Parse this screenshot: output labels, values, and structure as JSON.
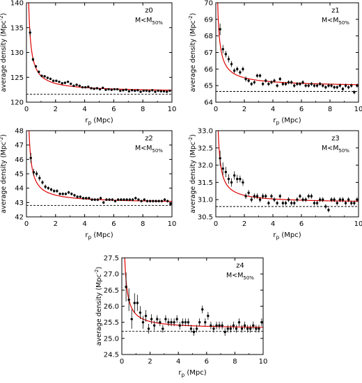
{
  "figure": {
    "xlabel_main": "r",
    "xlabel_sub": "p",
    "xlabel_unit": " (Mpc)",
    "ylabel_main": "average density (Mpc",
    "ylabel_sup": "-2",
    "ylabel_close": ")"
  },
  "colors": {
    "model": "#e00000",
    "points": "#000000",
    "baseline": "#000000",
    "frame": "#000000"
  },
  "chart_data": [
    {
      "type": "scatter",
      "panel": "z0",
      "tag": "z0",
      "mass_main": "M<M",
      "mass_sub": "50%",
      "xlim": [
        0,
        10
      ],
      "ylim": [
        120,
        140
      ],
      "xticks": [
        "0",
        "2",
        "4",
        "6",
        "8",
        "10"
      ],
      "yticks": [
        "120",
        "125",
        "130",
        "135",
        "140"
      ],
      "x": [
        0.25,
        0.45,
        0.65,
        0.85,
        1.05,
        1.25,
        1.45,
        1.65,
        1.85,
        2.05,
        2.25,
        2.45,
        2.65,
        2.85,
        3.05,
        3.25,
        3.45,
        3.65,
        3.85,
        4.05,
        4.25,
        4.45,
        4.65,
        4.85,
        5.05,
        5.25,
        5.45,
        5.65,
        5.85,
        6.05,
        6.25,
        6.45,
        6.65,
        6.85,
        7.05,
        7.25,
        7.45,
        7.65,
        7.85,
        8.05,
        8.25,
        8.45,
        8.65,
        8.85,
        9.05,
        9.25,
        9.45,
        9.65,
        9.85
      ],
      "y": [
        134.0,
        128.6,
        127.2,
        126.1,
        125.3,
        125.2,
        124.9,
        124.7,
        124.3,
        124.3,
        124.1,
        123.8,
        123.9,
        124.1,
        123.7,
        123.3,
        123.5,
        123.3,
        123.0,
        123.0,
        123.1,
        122.8,
        122.7,
        122.8,
        122.6,
        122.9,
        122.5,
        122.6,
        122.5,
        122.6,
        122.6,
        122.3,
        122.4,
        122.5,
        122.2,
        122.4,
        122.3,
        122.4,
        122.1,
        122.3,
        122.3,
        122.2,
        122.4,
        122.1,
        122.3,
        122.2,
        122.2,
        122.1,
        122.3
      ],
      "err": [
        0.7,
        0.4,
        0.3,
        0.3,
        0.25,
        0.25,
        0.25,
        0.25,
        0.2,
        0.2,
        0.2,
        0.2,
        0.2,
        0.2,
        0.2,
        0.2,
        0.2,
        0.2,
        0.2,
        0.2,
        0.2,
        0.2,
        0.2,
        0.2,
        0.2,
        0.2,
        0.2,
        0.2,
        0.2,
        0.2,
        0.2,
        0.2,
        0.2,
        0.2,
        0.2,
        0.2,
        0.2,
        0.2,
        0.2,
        0.2,
        0.2,
        0.2,
        0.2,
        0.2,
        0.2,
        0.2,
        0.2,
        0.2,
        0.2
      ],
      "model": {
        "floor": 122.0,
        "amp": 3.3,
        "power": 0.9
      },
      "baseline": 121.6
    },
    {
      "type": "scatter",
      "panel": "z1",
      "tag": "z1",
      "mass_main": "M<M",
      "mass_sub": "50%",
      "xlim": [
        0,
        10
      ],
      "ylim": [
        64,
        70
      ],
      "xticks": [
        "0",
        "2",
        "4",
        "6",
        "8",
        "10"
      ],
      "yticks": [
        "64",
        "65",
        "66",
        "67",
        "68",
        "69",
        "70"
      ],
      "x": [
        0.3,
        0.5,
        0.7,
        0.9,
        1.1,
        1.3,
        1.5,
        1.7,
        1.9,
        2.1,
        2.3,
        2.5,
        2.7,
        2.9,
        3.1,
        3.3,
        3.5,
        3.7,
        3.9,
        4.1,
        4.3,
        4.5,
        4.7,
        4.9,
        5.1,
        5.3,
        5.5,
        5.7,
        5.9,
        6.1,
        6.3,
        6.5,
        6.7,
        6.9,
        7.1,
        7.3,
        7.5,
        7.7,
        7.9,
        8.1,
        8.3,
        8.5,
        8.7,
        8.9,
        9.1,
        9.3,
        9.5,
        9.7,
        9.9
      ],
      "y": [
        68.4,
        67.2,
        66.9,
        66.6,
        66.3,
        65.9,
        66.0,
        65.8,
        66.0,
        65.4,
        65.3,
        65.1,
        65.2,
        65.6,
        65.6,
        65.1,
        65.3,
        65.1,
        65.2,
        65.3,
        65.0,
        65.4,
        65.1,
        65.1,
        65.2,
        65.2,
        65.0,
        65.1,
        65.1,
        65.2,
        65.0,
        65.0,
        65.1,
        65.0,
        65.0,
        65.1,
        65.0,
        64.9,
        65.0,
        65.0,
        64.9,
        64.9,
        65.0,
        64.8,
        65.0,
        64.9,
        65.0,
        64.6,
        65.0
      ],
      "err": [
        0.35,
        0.25,
        0.2,
        0.2,
        0.18,
        0.15,
        0.15,
        0.15,
        0.15,
        0.15,
        0.12,
        0.12,
        0.12,
        0.12,
        0.12,
        0.12,
        0.12,
        0.12,
        0.12,
        0.12,
        0.12,
        0.12,
        0.12,
        0.12,
        0.12,
        0.12,
        0.12,
        0.12,
        0.12,
        0.12,
        0.12,
        0.12,
        0.12,
        0.12,
        0.12,
        0.12,
        0.12,
        0.12,
        0.12,
        0.12,
        0.12,
        0.12,
        0.12,
        0.12,
        0.12,
        0.12,
        0.12,
        0.12,
        0.12
      ],
      "model": {
        "floor": 64.9,
        "amp": 1.0,
        "power": 0.8
      },
      "baseline": 64.65
    },
    {
      "type": "scatter",
      "panel": "z2",
      "tag": "z2",
      "mass_main": "M<M",
      "mass_sub": "50%",
      "xlim": [
        0,
        10
      ],
      "ylim": [
        42,
        48
      ],
      "xticks": [
        "0",
        "2",
        "4",
        "6",
        "8",
        "10"
      ],
      "yticks": [
        "42",
        "43",
        "44",
        "45",
        "46",
        "47",
        "48"
      ],
      "x": [
        0.3,
        0.5,
        0.7,
        0.9,
        1.1,
        1.3,
        1.5,
        1.7,
        1.9,
        2.1,
        2.3,
        2.5,
        2.7,
        2.9,
        3.1,
        3.3,
        3.5,
        3.7,
        3.9,
        4.1,
        4.3,
        4.5,
        4.7,
        4.9,
        5.1,
        5.3,
        5.5,
        5.7,
        5.9,
        6.1,
        6.3,
        6.5,
        6.7,
        6.9,
        7.1,
        7.3,
        7.5,
        7.7,
        7.9,
        8.1,
        8.3,
        8.5,
        8.7,
        8.9,
        9.1,
        9.3,
        9.5,
        9.7,
        9.9
      ],
      "y": [
        46.1,
        45.1,
        45.0,
        44.7,
        44.4,
        44.1,
        44.0,
        43.9,
        43.8,
        43.8,
        43.6,
        43.6,
        43.6,
        43.7,
        43.6,
        43.5,
        43.4,
        43.4,
        43.3,
        43.3,
        43.3,
        43.2,
        43.2,
        43.2,
        43.3,
        43.0,
        43.2,
        43.2,
        43.2,
        43.1,
        43.2,
        43.2,
        43.2,
        43.2,
        43.2,
        43.2,
        43.3,
        43.2,
        43.1,
        43.2,
        43.1,
        43.1,
        43.1,
        43.1,
        43.1,
        43.1,
        43.2,
        43.1,
        42.9
      ],
      "err": [
        0.35,
        0.25,
        0.2,
        0.2,
        0.15,
        0.15,
        0.12,
        0.12,
        0.12,
        0.12,
        0.1,
        0.1,
        0.1,
        0.1,
        0.1,
        0.1,
        0.1,
        0.1,
        0.1,
        0.1,
        0.1,
        0.1,
        0.1,
        0.1,
        0.1,
        0.1,
        0.1,
        0.1,
        0.1,
        0.1,
        0.1,
        0.1,
        0.1,
        0.1,
        0.1,
        0.1,
        0.1,
        0.1,
        0.1,
        0.1,
        0.1,
        0.1,
        0.1,
        0.1,
        0.1,
        0.1,
        0.1,
        0.1,
        0.1
      ],
      "model": {
        "floor": 42.95,
        "amp": 1.05,
        "power": 0.9
      },
      "baseline": 42.8
    },
    {
      "type": "scatter",
      "panel": "z3",
      "tag": "z3",
      "mass_main": "M<M",
      "mass_sub": "50%",
      "xlim": [
        0,
        10
      ],
      "ylim": [
        30.5,
        33
      ],
      "xticks": [
        "0",
        "2",
        "4",
        "6",
        "10"
      ],
      "xtick_values": [
        0,
        2,
        4,
        6,
        10
      ],
      "yticks": [
        "30.5",
        "31.0",
        "31.5",
        "32.0",
        "32.5",
        "33.0"
      ],
      "x": [
        0.3,
        0.5,
        0.7,
        0.9,
        1.1,
        1.3,
        1.5,
        1.7,
        1.9,
        2.1,
        2.3,
        2.5,
        2.7,
        2.9,
        3.1,
        3.3,
        3.5,
        3.7,
        3.9,
        4.1,
        4.3,
        4.5,
        4.7,
        4.9,
        5.1,
        5.3,
        5.5,
        5.7,
        5.9,
        6.1,
        6.3,
        6.5,
        6.7,
        6.9,
        7.1,
        7.3,
        7.5,
        7.7,
        7.9,
        8.1,
        8.3,
        8.5,
        8.7,
        8.9,
        9.1,
        9.3,
        9.5,
        9.7,
        9.9
      ],
      "y": [
        32.2,
        31.9,
        31.8,
        31.6,
        31.5,
        31.7,
        31.6,
        31.6,
        31.5,
        31.1,
        31.2,
        31.0,
        31.1,
        31.1,
        31.0,
        31.1,
        31.1,
        30.9,
        31.1,
        31.0,
        30.9,
        31.1,
        30.9,
        30.9,
        31.0,
        30.9,
        30.9,
        31.0,
        31.1,
        31.0,
        31.0,
        31.1,
        31.1,
        30.9,
        30.9,
        31.0,
        31.0,
        30.8,
        30.7,
        31.0,
        31.0,
        30.9,
        31.0,
        31.0,
        30.9,
        31.0,
        30.9,
        30.9,
        31.0
      ],
      "err": [
        0.22,
        0.18,
        0.15,
        0.14,
        0.12,
        0.12,
        0.12,
        0.1,
        0.1,
        0.08,
        0.08,
        0.08,
        0.08,
        0.08,
        0.08,
        0.08,
        0.07,
        0.07,
        0.07,
        0.07,
        0.07,
        0.07,
        0.07,
        0.07,
        0.07,
        0.07,
        0.07,
        0.07,
        0.07,
        0.07,
        0.07,
        0.07,
        0.07,
        0.07,
        0.07,
        0.07,
        0.07,
        0.07,
        0.07,
        0.07,
        0.07,
        0.07,
        0.07,
        0.07,
        0.07,
        0.07,
        0.07,
        0.07,
        0.07
      ],
      "model": {
        "floor": 30.9,
        "amp": 0.42,
        "power": 0.9
      },
      "baseline": 30.8
    },
    {
      "type": "scatter",
      "panel": "z4",
      "tag": "z4",
      "mass_main": "M<M",
      "mass_sub": "50%",
      "xlim": [
        0,
        10
      ],
      "ylim": [
        24.5,
        27.5
      ],
      "xticks": [
        "0",
        "2",
        "4",
        "6",
        "8",
        "10"
      ],
      "yticks": [
        "24.5",
        "25.0",
        "25.5",
        "26.0",
        "26.5",
        "27.0",
        "27.5"
      ],
      "x": [
        0.3,
        0.5,
        0.7,
        0.9,
        1.1,
        1.3,
        1.5,
        1.7,
        1.9,
        2.1,
        2.3,
        2.5,
        2.7,
        2.9,
        3.1,
        3.3,
        3.5,
        3.7,
        3.9,
        4.1,
        4.3,
        4.5,
        4.7,
        4.9,
        5.1,
        5.3,
        5.5,
        5.7,
        5.9,
        6.1,
        6.3,
        6.5,
        6.7,
        6.9,
        7.1,
        7.3,
        7.5,
        7.7,
        7.9,
        8.1,
        8.3,
        8.5,
        8.7,
        8.9,
        9.1,
        9.3,
        9.5,
        9.7,
        9.9
      ],
      "y": [
        26.6,
        26.2,
        25.6,
        26.1,
        26.1,
        25.8,
        25.5,
        25.7,
        25.3,
        25.6,
        25.4,
        25.6,
        25.5,
        25.3,
        25.6,
        25.5,
        25.5,
        25.5,
        25.6,
        25.4,
        25.5,
        25.5,
        25.5,
        25.3,
        25.2,
        25.3,
        25.5,
        25.9,
        25.5,
        25.7,
        25.4,
        25.3,
        25.4,
        25.4,
        25.4,
        25.2,
        25.3,
        25.3,
        25.4,
        25.3,
        25.5,
        25.3,
        25.4,
        25.3,
        25.3,
        25.4,
        25.3,
        25.3,
        25.5
      ],
      "err": [
        0.45,
        0.35,
        0.3,
        0.3,
        0.25,
        0.2,
        0.2,
        0.18,
        0.15,
        0.15,
        0.15,
        0.12,
        0.12,
        0.12,
        0.12,
        0.12,
        0.12,
        0.12,
        0.12,
        0.12,
        0.12,
        0.12,
        0.12,
        0.12,
        0.12,
        0.12,
        0.12,
        0.12,
        0.12,
        0.12,
        0.12,
        0.12,
        0.12,
        0.12,
        0.12,
        0.12,
        0.12,
        0.12,
        0.12,
        0.12,
        0.12,
        0.12,
        0.12,
        0.12,
        0.12,
        0.12,
        0.12,
        0.12,
        0.12
      ],
      "model": {
        "floor": 25.3,
        "amp": 0.45,
        "power": 1.0
      },
      "baseline": 25.22
    }
  ]
}
